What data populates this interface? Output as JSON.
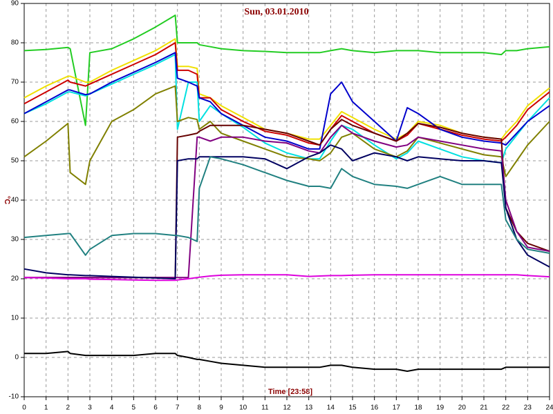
{
  "chart_data": {
    "type": "line",
    "title": "Sun, 03.01.2010",
    "x_label": "Time [23:58]",
    "y_label": "°C",
    "x": [
      0,
      1,
      2,
      2.1,
      2.8,
      3,
      4,
      5,
      6,
      6.9,
      7,
      7.5,
      7.9,
      8,
      8.5,
      9,
      10,
      11,
      12,
      13,
      13.5,
      14,
      14.5,
      15,
      16,
      17,
      17.5,
      18,
      19,
      20,
      21,
      21.8,
      22,
      22.5,
      23,
      24
    ],
    "xlim": [
      0,
      24
    ],
    "xticks": [
      0,
      1,
      2,
      3,
      4,
      5,
      6,
      7,
      8,
      9,
      10,
      11,
      12,
      13,
      14,
      15,
      16,
      17,
      18,
      19,
      20,
      21,
      22,
      23,
      24
    ],
    "ylim": [
      -10,
      90
    ],
    "yticks": [
      -10,
      0,
      10,
      20,
      30,
      40,
      50,
      60,
      70,
      80,
      90
    ],
    "grid": true,
    "series": [
      {
        "color": "#22cc22",
        "values": [
          78,
          78.3,
          78.8,
          78.5,
          59,
          77.5,
          78.5,
          81,
          84,
          87,
          80,
          80,
          80,
          79.5,
          79,
          78.5,
          78,
          77.8,
          77.5,
          77.5,
          77.5,
          78,
          78.5,
          78,
          77.5,
          78,
          78,
          78,
          77.5,
          77.5,
          77.5,
          77,
          78,
          78,
          78.5,
          79
        ]
      },
      {
        "color": "#f0e000",
        "values": [
          66,
          69,
          71.5,
          71.5,
          70,
          70,
          73,
          75.5,
          78,
          81,
          74,
          74,
          73.5,
          67,
          66,
          64,
          61,
          58,
          57,
          55.5,
          55.5,
          59,
          62.5,
          61,
          58,
          55.5,
          57,
          60,
          59,
          57,
          56,
          55.5,
          57,
          60,
          64,
          68.5
        ]
      },
      {
        "color": "#cc0000",
        "values": [
          64.5,
          67.5,
          70.5,
          70,
          69,
          69.5,
          72,
          74.5,
          77,
          80,
          73,
          73,
          72,
          66,
          66,
          63,
          60,
          57.5,
          56.5,
          54.5,
          54,
          58,
          61.5,
          60,
          57,
          55,
          56.5,
          59.5,
          58,
          56.5,
          55.5,
          55,
          56,
          59,
          63,
          67.5
        ]
      },
      {
        "color": "#00e0e0",
        "values": [
          62,
          64.5,
          67.5,
          67.5,
          66.5,
          67,
          69.5,
          72,
          74.5,
          77,
          58,
          70,
          70,
          60,
          64,
          62,
          58.5,
          54.5,
          52,
          50.5,
          50.5,
          55,
          59,
          58,
          54,
          50.5,
          52,
          55,
          53,
          51,
          50,
          49.5,
          53,
          56.5,
          60,
          66
        ]
      },
      {
        "color": "#0000cc",
        "values": [
          62,
          65,
          68,
          68,
          66.8,
          67,
          70,
          72.5,
          75,
          77.5,
          71,
          70,
          69,
          66,
          65,
          62,
          59,
          56,
          55,
          53,
          53,
          67,
          70,
          65,
          60,
          55,
          63.5,
          62,
          58,
          56,
          55,
          54.5,
          54,
          57,
          60,
          64
        ]
      },
      {
        "color": "#808000",
        "values": [
          51,
          55,
          59.5,
          47,
          44,
          50,
          60,
          63,
          67,
          69,
          60,
          61,
          60.5,
          58,
          60,
          57,
          55,
          53,
          51,
          50.5,
          50,
          52,
          56,
          57,
          53,
          51,
          52.5,
          56,
          54.5,
          53,
          51.5,
          51,
          46,
          50,
          54,
          60
        ]
      },
      {
        "color": "#660000",
        "values": [
          20.3,
          20.3,
          20.3,
          20.3,
          20.3,
          20.3,
          20.3,
          20.3,
          20.3,
          20.3,
          56,
          56.5,
          57,
          57.5,
          59,
          59,
          59,
          58,
          57,
          55,
          54,
          58,
          60.5,
          59,
          57,
          55,
          57,
          59.5,
          58.5,
          57,
          56,
          55.5,
          38,
          32,
          29,
          27
        ]
      },
      {
        "color": "#800080",
        "values": [
          20.3,
          20.3,
          20.3,
          20.3,
          20.3,
          20.3,
          20.3,
          20.3,
          20.3,
          20.3,
          20.3,
          20.3,
          56,
          56,
          55,
          56,
          56,
          55,
          54.5,
          52.5,
          52,
          56,
          59,
          57,
          55,
          53.5,
          54,
          56,
          55,
          54,
          53,
          52.5,
          40,
          32,
          28,
          27
        ]
      },
      {
        "color": "#000060",
        "values": [
          22.5,
          21.5,
          21,
          21,
          20.8,
          20.8,
          20.6,
          20.4,
          20.2,
          20,
          50,
          50.5,
          50.5,
          51,
          51,
          51,
          51,
          50.5,
          48,
          51,
          52,
          54,
          53,
          50,
          52,
          51,
          50,
          51,
          50.5,
          50,
          50,
          49.5,
          38,
          30,
          26,
          23
        ]
      },
      {
        "color": "#208080",
        "values": [
          30.5,
          31,
          31.5,
          31.5,
          26,
          27.5,
          31,
          31.5,
          31.5,
          31,
          31,
          30.5,
          29.5,
          43,
          51,
          50.5,
          49,
          47,
          45,
          43.5,
          43.5,
          43,
          48,
          46,
          44,
          43.5,
          43,
          44,
          46,
          44,
          44,
          44,
          35,
          30,
          27.5,
          26.5
        ]
      },
      {
        "color": "#dd00dd",
        "values": [
          20.3,
          20.2,
          20,
          20,
          20,
          19.9,
          19.8,
          19.7,
          19.6,
          19.6,
          19.7,
          20,
          20.3,
          20.4,
          20.7,
          20.9,
          21,
          21,
          21,
          20.6,
          20.7,
          20.8,
          20.8,
          20.9,
          21,
          21,
          21,
          21,
          21,
          21,
          21,
          21,
          21,
          21,
          20.8,
          20.5
        ]
      },
      {
        "color": "#000000",
        "values": [
          1,
          1,
          1.5,
          1,
          0.5,
          0.5,
          0.5,
          0.5,
          1,
          1,
          0.5,
          0,
          -0.5,
          -0.5,
          -1,
          -1.5,
          -2,
          -2.5,
          -2.5,
          -2.5,
          -2.5,
          -2,
          -2,
          -2.5,
          -3,
          -3,
          -3.5,
          -3,
          -3,
          -3,
          -3,
          -3,
          -2.5,
          -2.5,
          -2.5,
          -2.5
        ]
      }
    ]
  }
}
